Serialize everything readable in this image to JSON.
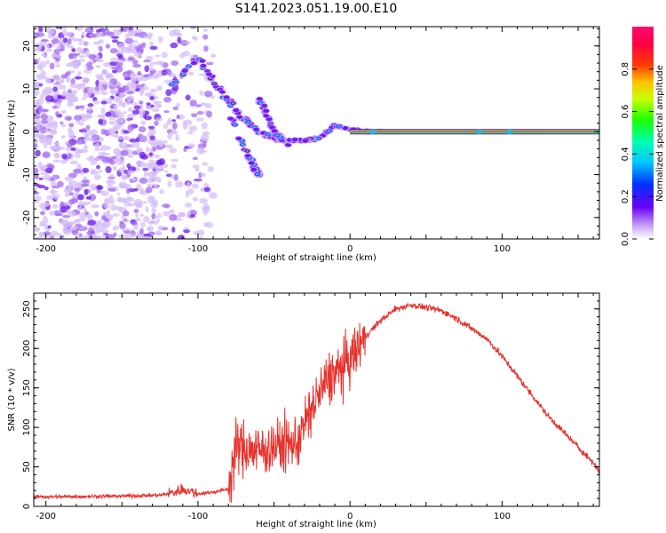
{
  "title": "S141.2023.051.19.00.E10",
  "chart_data": [
    {
      "type": "heatmap",
      "xlabel": "Height of straight line (km)",
      "ylabel": "Frequency (Hz)",
      "xlim": [
        -208,
        164
      ],
      "ylim": [
        -25,
        24.5
      ],
      "xticks": [
        -200,
        -100,
        0,
        100
      ],
      "yticks": [
        -20,
        -10,
        0,
        10,
        20
      ],
      "colorbar": {
        "label": "Normalized spectral amplitude",
        "range": [
          0,
          1
        ],
        "ticks": [
          0.0,
          0.2,
          0.4,
          0.6,
          0.8
        ],
        "tick_labels": [
          "0.0",
          "0.2",
          "0.4",
          "0.6",
          "0.8"
        ]
      },
      "features": {
        "noise_region_x": [
          -208,
          -90
        ],
        "dense_noise_x": [
          -208,
          -125
        ],
        "branch_1": [
          [
            -120,
            10
          ],
          [
            -100,
            17
          ],
          [
            -75,
            5
          ],
          [
            -60,
            0
          ],
          [
            -45,
            -2
          ]
        ],
        "branch_2": [
          [
            -80,
            5
          ],
          [
            -68,
            -5
          ],
          [
            -60,
            -10
          ]
        ],
        "branch_3": [
          [
            -60,
            8
          ],
          [
            -50,
            0
          ],
          [
            -40,
            -3
          ]
        ],
        "main_trace": [
          [
            -40,
            -2
          ],
          [
            -30,
            -2
          ],
          [
            -20,
            -1.5
          ],
          [
            -10,
            1.5
          ],
          [
            0,
            0.5
          ],
          [
            20,
            0
          ],
          [
            60,
            0
          ],
          [
            100,
            0
          ],
          [
            164,
            0
          ]
        ],
        "steady_trace_x": [
          0,
          164
        ],
        "steady_frequency": 0
      }
    },
    {
      "type": "line",
      "xlabel": "Height of straight line (km)",
      "ylabel": "SNR (10 * v/v)",
      "xlim": [
        -208,
        164
      ],
      "ylim": [
        0,
        270
      ],
      "xticks": [
        -200,
        -100,
        0,
        100
      ],
      "yticks": [
        0,
        50,
        100,
        150,
        200,
        250
      ],
      "color": "#e8312c",
      "series": [
        {
          "x": [
            -208,
            -150,
            -125,
            -115,
            -110,
            -100,
            -90,
            -80,
            -75,
            -60,
            -45,
            -35,
            -25,
            -15,
            -5,
            0,
            10,
            20,
            30,
            40,
            50,
            60,
            70,
            80,
            90,
            100,
            110,
            120,
            130,
            140,
            150,
            160,
            164
          ],
          "values": [
            12,
            13,
            14,
            18,
            22,
            16,
            18,
            22,
            75,
            70,
            78,
            80,
            125,
            160,
            175,
            185,
            215,
            235,
            250,
            255,
            252,
            248,
            238,
            225,
            212,
            190,
            165,
            140,
            115,
            95,
            75,
            55,
            45
          ]
        }
      ]
    }
  ]
}
